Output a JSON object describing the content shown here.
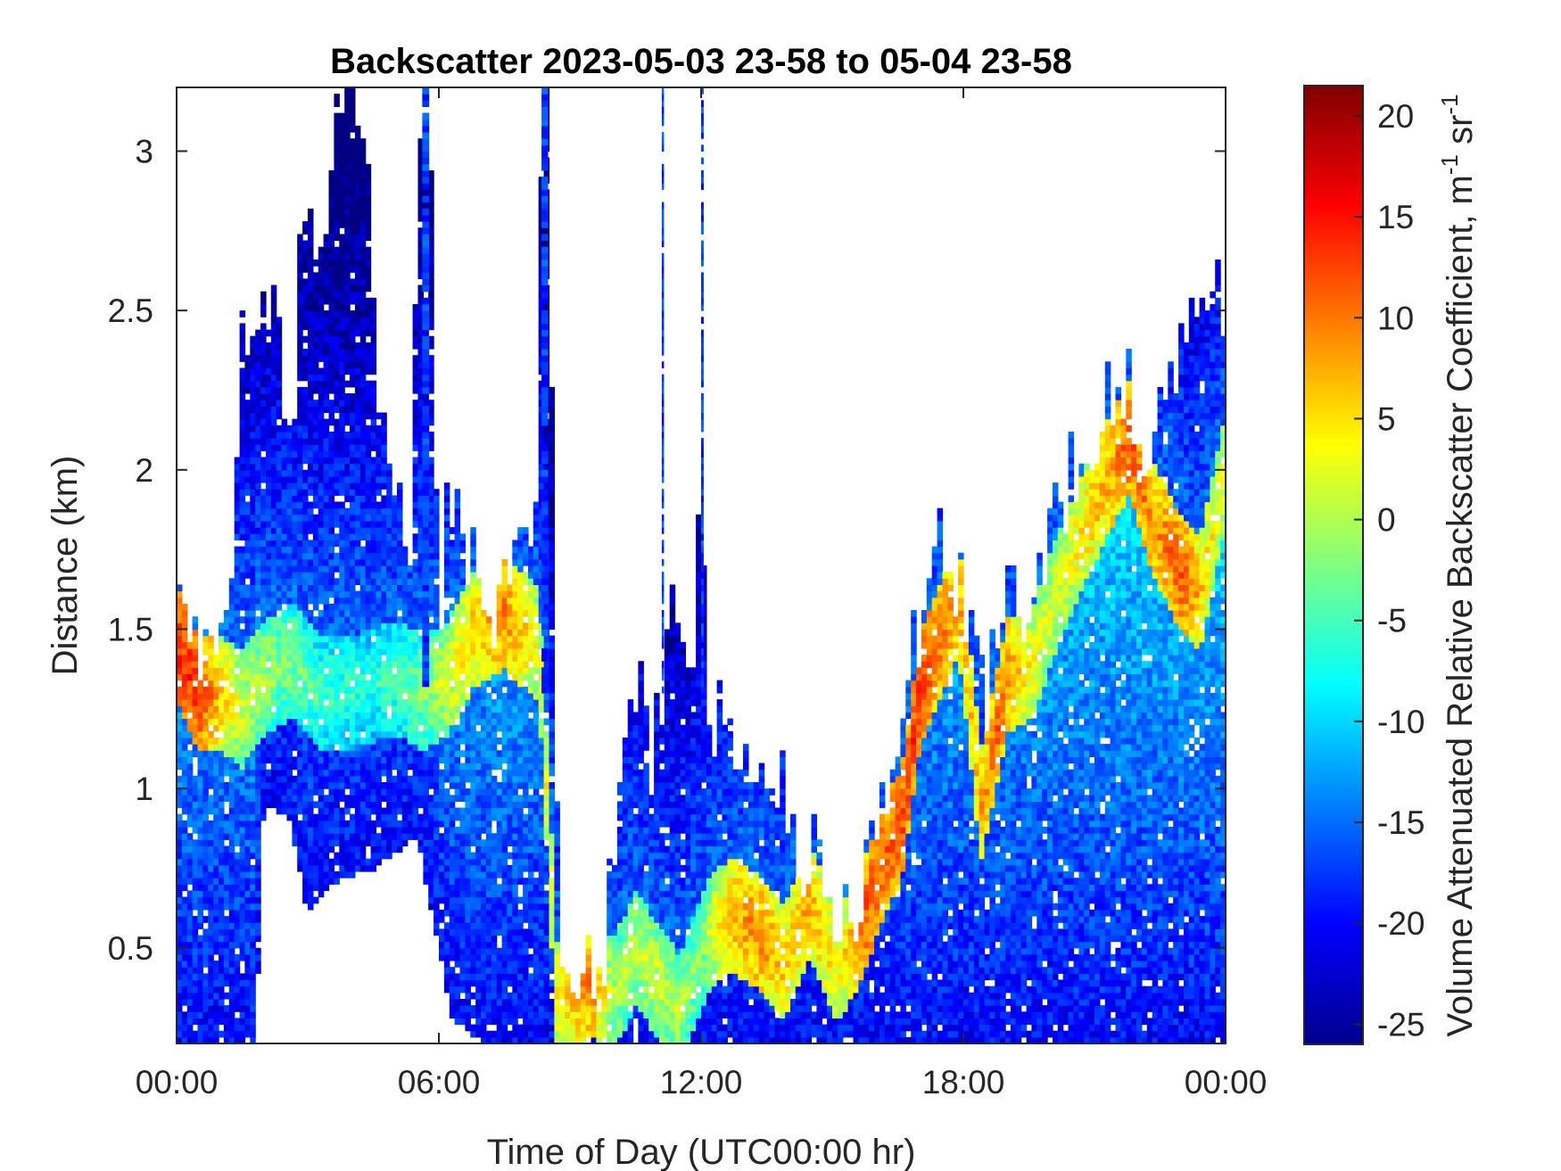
{
  "chart_data": {
    "type": "heatmap",
    "title": "Backscatter 2023-05-03 23-58 to 05-04 23-58",
    "xlabel": "Time of Day (UTC00:00 hr)",
    "ylabel": "Distance (km)",
    "colorbar_label": "Volume Attenuated Relative Backscatter Coefficient, m",
    "colorbar_label_sup1": "-1",
    "colorbar_label_mid": " sr",
    "colorbar_label_sup2": "-1",
    "colormap": "jet",
    "xlim": [
      0,
      24
    ],
    "ylim": [
      0.2,
      3.2
    ],
    "clim": [
      -26,
      21.5
    ],
    "x_ticks": [
      {
        "value": 0,
        "label": "00:00"
      },
      {
        "value": 6,
        "label": "06:00"
      },
      {
        "value": 12,
        "label": "12:00"
      },
      {
        "value": 18,
        "label": "18:00"
      },
      {
        "value": 24,
        "label": "00:00"
      }
    ],
    "y_ticks": [
      {
        "value": 0.5,
        "label": "0.5"
      },
      {
        "value": 1,
        "label": "1"
      },
      {
        "value": 1.5,
        "label": "1.5"
      },
      {
        "value": 2,
        "label": "2"
      },
      {
        "value": 2.5,
        "label": "2.5"
      },
      {
        "value": 3,
        "label": "3"
      }
    ],
    "c_ticks": [
      {
        "value": 20,
        "label": "20"
      },
      {
        "value": 15,
        "label": "15"
      },
      {
        "value": 10,
        "label": "10"
      },
      {
        "value": 5,
        "label": "5"
      },
      {
        "value": 0,
        "label": "0"
      },
      {
        "value": -5,
        "label": "-5"
      },
      {
        "value": -10,
        "label": "-10"
      },
      {
        "value": -15,
        "label": "-15"
      },
      {
        "value": -20,
        "label": "-20"
      },
      {
        "value": -25,
        "label": "-25"
      }
    ],
    "layers": {
      "top": [
        [
          0,
          1.6
        ],
        [
          0.25,
          1.55
        ],
        [
          0.5,
          1.45
        ],
        [
          0.75,
          1.4
        ],
        [
          1.0,
          1.55
        ],
        [
          1.25,
          1.7
        ],
        [
          1.5,
          2.4
        ],
        [
          1.8,
          2.3
        ],
        [
          2.1,
          2.5
        ],
        [
          2.4,
          2.3
        ],
        [
          2.7,
          2.1
        ],
        [
          2.85,
          3.1
        ],
        [
          3.0,
          2.8
        ],
        [
          3.3,
          2.7
        ],
        [
          3.6,
          3.2
        ],
        [
          4.3,
          3.2
        ],
        [
          4.6,
          2.3
        ],
        [
          5.0,
          2.0
        ],
        [
          5.3,
          1.55
        ],
        [
          5.6,
          3.2
        ],
        [
          5.8,
          3.2
        ],
        [
          6.0,
          1.6
        ],
        [
          6.3,
          1.9
        ],
        [
          6.6,
          1.7
        ],
        [
          7.0,
          1.62
        ],
        [
          7.5,
          1.6
        ],
        [
          8.0,
          1.7
        ],
        [
          8.2,
          1.6
        ],
        [
          8.35,
          3.2
        ],
        [
          8.5,
          3.2
        ],
        [
          8.65,
          1.3
        ],
        [
          8.8,
          0.45
        ],
        [
          9.5,
          0.45
        ],
        [
          9.8,
          0.5
        ],
        [
          10.0,
          0.9
        ],
        [
          10.3,
          1.2
        ],
        [
          10.6,
          1.3
        ],
        [
          10.9,
          1.1
        ],
        [
          11.2,
          1.4
        ],
        [
          11.5,
          1.6
        ],
        [
          11.8,
          1.5
        ],
        [
          12.0,
          1.8
        ],
        [
          12.2,
          1.25
        ],
        [
          12.6,
          1.3
        ],
        [
          12.9,
          1.1
        ],
        [
          13.3,
          0.85
        ],
        [
          13.6,
          1.1
        ],
        [
          13.9,
          0.95
        ],
        [
          14.2,
          0.75
        ],
        [
          14.6,
          0.85
        ],
        [
          15.0,
          0.6
        ],
        [
          15.4,
          0.55
        ],
        [
          15.8,
          0.72
        ],
        [
          16.2,
          0.9
        ],
        [
          16.6,
          1.1
        ],
        [
          16.9,
          1.45
        ],
        [
          17.2,
          1.6
        ],
        [
          17.5,
          1.75
        ],
        [
          17.8,
          1.7
        ],
        [
          18.1,
          1.5
        ],
        [
          18.4,
          1.3
        ],
        [
          18.7,
          1.4
        ],
        [
          19.0,
          1.55
        ],
        [
          19.3,
          1.6
        ],
        [
          19.6,
          1.7
        ],
        [
          20.0,
          1.8
        ],
        [
          20.4,
          2.0
        ],
        [
          20.8,
          2.1
        ],
        [
          21.3,
          2.25
        ],
        [
          21.8,
          2.2
        ],
        [
          22.3,
          2.1
        ],
        [
          22.8,
          2.35
        ],
        [
          23.2,
          2.4
        ],
        [
          23.6,
          2.4
        ],
        [
          24.0,
          2.6
        ]
      ],
      "bottom": [
        [
          0,
          0.2
        ],
        [
          1.8,
          0.2
        ],
        [
          2.0,
          0.95
        ],
        [
          2.6,
          0.9
        ],
        [
          3.0,
          0.6
        ],
        [
          3.5,
          0.7
        ],
        [
          4.5,
          0.75
        ],
        [
          5.5,
          0.85
        ],
        [
          6.0,
          0.5
        ],
        [
          6.3,
          0.28
        ],
        [
          7.0,
          0.2
        ],
        [
          24,
          0.2
        ]
      ],
      "peak": [
        [
          0,
          1.45
        ],
        [
          0.5,
          1.3
        ],
        [
          1.0,
          1.3
        ],
        [
          1.5,
          1.25
        ],
        [
          2.0,
          1.35
        ],
        [
          2.7,
          1.4
        ],
        [
          3.3,
          1.3
        ],
        [
          4.0,
          1.3
        ],
        [
          5.0,
          1.35
        ],
        [
          5.6,
          1.3
        ],
        [
          6.2,
          1.35
        ],
        [
          6.8,
          1.5
        ],
        [
          7.5,
          1.55
        ],
        [
          8.3,
          1.45
        ],
        [
          8.7,
          0.35
        ],
        [
          9.5,
          0.4
        ],
        [
          10.0,
          0.35
        ],
        [
          10.5,
          0.5
        ],
        [
          11.0,
          0.4
        ],
        [
          11.5,
          0.3
        ],
        [
          12.2,
          0.55
        ],
        [
          12.7,
          0.6
        ],
        [
          13.3,
          0.55
        ],
        [
          13.9,
          0.45
        ],
        [
          14.5,
          0.65
        ],
        [
          15.1,
          0.45
        ],
        [
          15.6,
          0.55
        ],
        [
          16.1,
          0.75
        ],
        [
          16.6,
          0.9
        ],
        [
          17.0,
          1.3
        ],
        [
          17.4,
          1.45
        ],
        [
          17.9,
          1.6
        ],
        [
          18.4,
          0.95
        ],
        [
          19.0,
          1.35
        ],
        [
          19.6,
          1.4
        ],
        [
          20.1,
          1.6
        ],
        [
          20.7,
          1.8
        ],
        [
          21.2,
          1.95
        ],
        [
          21.8,
          2.1
        ],
        [
          22.3,
          1.85
        ],
        [
          22.9,
          1.7
        ],
        [
          23.4,
          1.6
        ],
        [
          24.0,
          2.0
        ]
      ],
      "peak_level": [
        [
          0,
          14
        ],
        [
          0.5,
          14
        ],
        [
          1.0,
          7
        ],
        [
          1.5,
          2
        ],
        [
          2.5,
          -2
        ],
        [
          3.5,
          -5
        ],
        [
          4.5,
          -6
        ],
        [
          5.5,
          -3
        ],
        [
          6.5,
          5
        ],
        [
          7.5,
          10
        ],
        [
          8.3,
          3
        ],
        [
          8.7,
          5
        ],
        [
          9.5,
          10
        ],
        [
          10.0,
          0
        ],
        [
          11.0,
          2
        ],
        [
          12.0,
          -2
        ],
        [
          12.5,
          6
        ],
        [
          13.3,
          10
        ],
        [
          14.0,
          6
        ],
        [
          14.5,
          8
        ],
        [
          15.2,
          4
        ],
        [
          15.8,
          12
        ],
        [
          16.4,
          12
        ],
        [
          17.0,
          14
        ],
        [
          17.6,
          10
        ],
        [
          18.2,
          6
        ],
        [
          18.8,
          12
        ],
        [
          19.5,
          4
        ],
        [
          20.2,
          2
        ],
        [
          20.8,
          6
        ],
        [
          21.3,
          8
        ],
        [
          21.8,
          12
        ],
        [
          22.4,
          9
        ],
        [
          23.0,
          12
        ],
        [
          23.5,
          6
        ],
        [
          24.0,
          2
        ]
      ],
      "thin_plumes": [
        [
          8.35,
          8.5
        ],
        [
          5.62,
          5.78
        ],
        [
          11.1,
          11.15
        ],
        [
          12.0,
          12.06
        ]
      ]
    }
  }
}
